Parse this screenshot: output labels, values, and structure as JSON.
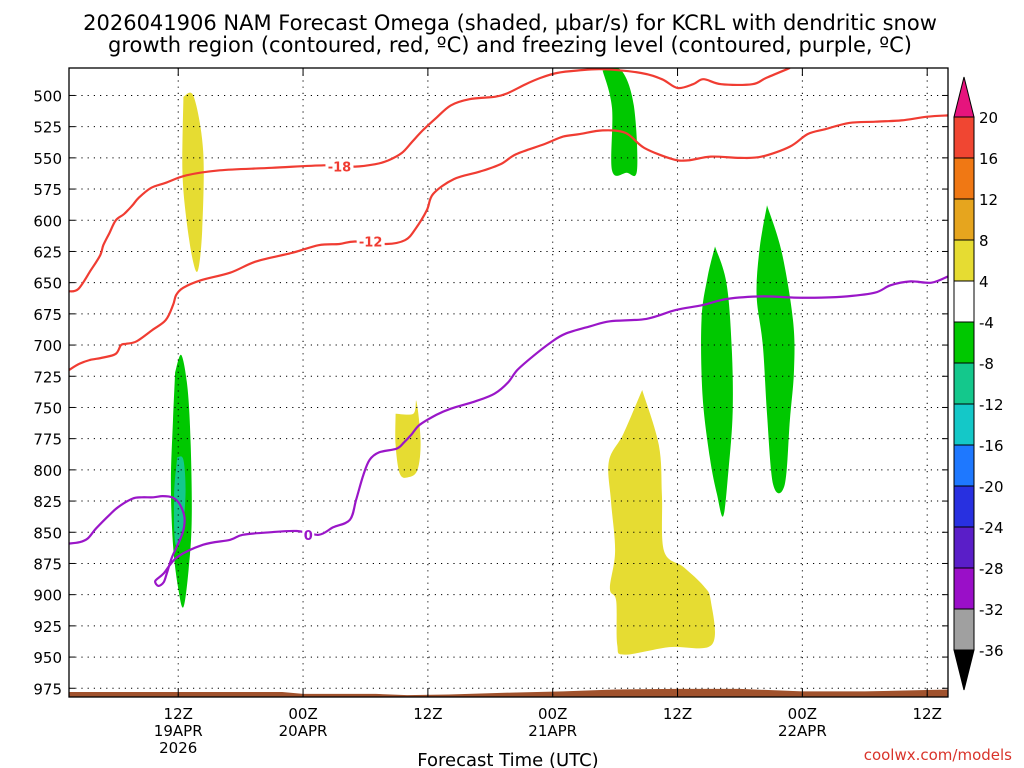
{
  "chart_data": {
    "type": "time-height",
    "title_line1": "2026041906 NAM Forecast Omega (shaded, µbar/s) for KCRL with dendritic snow",
    "title_line2": "growth region (contoured, red, ºC) and freezing level (contoured, purple, ºC)",
    "xlabel": "Forecast Time (UTC)",
    "credit": "coolwx.com/models",
    "xlim_hours": [
      -4.5,
      80
    ],
    "ylim_hpa": [
      478,
      982
    ],
    "y_ticks": [
      {
        "p": 500,
        "label": "500"
      },
      {
        "p": 525,
        "label": "525"
      },
      {
        "p": 550,
        "label": "550"
      },
      {
        "p": 575,
        "label": "575"
      },
      {
        "p": 600,
        "label": "600"
      },
      {
        "p": 625,
        "label": "625"
      },
      {
        "p": 650,
        "label": "650"
      },
      {
        "p": 675,
        "label": "675"
      },
      {
        "p": 700,
        "label": "700"
      },
      {
        "p": 725,
        "label": "725"
      },
      {
        "p": 750,
        "label": "750"
      },
      {
        "p": 775,
        "label": "775"
      },
      {
        "p": 800,
        "label": "800"
      },
      {
        "p": 825,
        "label": "825"
      },
      {
        "p": 850,
        "label": "850"
      },
      {
        "p": 875,
        "label": "875"
      },
      {
        "p": 900,
        "label": "900"
      },
      {
        "p": 925,
        "label": "925"
      },
      {
        "p": 950,
        "label": "950"
      },
      {
        "p": 975,
        "label": "975"
      }
    ],
    "x_ticks": [
      {
        "h": 6,
        "lines": [
          "12Z",
          "19APR",
          "2026"
        ]
      },
      {
        "h": 18,
        "lines": [
          "00Z",
          "20APR"
        ]
      },
      {
        "h": 30,
        "lines": [
          "12Z"
        ]
      },
      {
        "h": 42,
        "lines": [
          "00Z",
          "21APR"
        ]
      },
      {
        "h": 54,
        "lines": [
          "12Z"
        ]
      },
      {
        "h": 66,
        "lines": [
          "00Z",
          "22APR"
        ]
      },
      {
        "h": 78,
        "lines": [
          "12Z"
        ]
      }
    ],
    "colorbar": {
      "boundaries": [
        -36,
        -32,
        -28,
        -24,
        -20,
        -16,
        -12,
        -8,
        -4,
        4,
        8,
        12,
        16,
        20
      ],
      "colors": [
        "#a0a0a0",
        "#9a0fc8",
        "#5a1ec8",
        "#2830e0",
        "#1e78ff",
        "#14c8c8",
        "#14c88c",
        "#00c800",
        "#ffffff",
        "#e6dc32",
        "#e6a51e",
        "#f07814",
        "#f04632"
      ],
      "under_color": "#000000",
      "over_color": "#e6147d",
      "labels": [
        {
          "v": 20,
          "label": "20"
        },
        {
          "v": 16,
          "label": "16"
        },
        {
          "v": 12,
          "label": "12"
        },
        {
          "v": 8,
          "label": "8"
        },
        {
          "v": 4,
          "label": "4"
        },
        {
          "v": -4,
          "label": "-4"
        },
        {
          "v": -8,
          "label": "-8"
        },
        {
          "v": -12,
          "label": "-12"
        },
        {
          "v": -16,
          "label": "-16"
        },
        {
          "v": -20,
          "label": "-20"
        },
        {
          "v": -24,
          "label": "-24"
        },
        {
          "v": -28,
          "label": "-28"
        },
        {
          "v": -32,
          "label": "-32"
        },
        {
          "v": -36,
          "label": "-36"
        }
      ]
    },
    "terrain": {
      "color": "#a0522d",
      "points": [
        [
          -4.5,
          978
        ],
        [
          2,
          978
        ],
        [
          8,
          978
        ],
        [
          16,
          978
        ],
        [
          18,
          979.5
        ],
        [
          25,
          979.5
        ],
        [
          28,
          980.5
        ],
        [
          32,
          980
        ],
        [
          38,
          978.5
        ],
        [
          43,
          977.5
        ],
        [
          48,
          976
        ],
        [
          54,
          975.5
        ],
        [
          60,
          975.5
        ],
        [
          66,
          977.5
        ],
        [
          72,
          977.5
        ],
        [
          80,
          976
        ]
      ]
    },
    "contours": [
      {
        "name": "minus-18",
        "value": -18,
        "label": "-18",
        "label_at": [
          21.5,
          557
        ],
        "color": "#f03c32",
        "points": [
          [
            -4.5,
            657
          ],
          [
            -3.6,
            655
          ],
          [
            -2.4,
            640
          ],
          [
            -1.5,
            628
          ],
          [
            -1.2,
            620
          ],
          [
            -0.6,
            610
          ],
          [
            0,
            600
          ],
          [
            0.8,
            595
          ],
          [
            1.6,
            588
          ],
          [
            2.2,
            582
          ],
          [
            3.4,
            574
          ],
          [
            4.8,
            570
          ],
          [
            6.8,
            564
          ],
          [
            10,
            560
          ],
          [
            15,
            558
          ],
          [
            20,
            556
          ],
          [
            23,
            557
          ],
          [
            25,
            555
          ],
          [
            26.2,
            552
          ],
          [
            27.5,
            546
          ],
          [
            28.5,
            537
          ],
          [
            29.5,
            528
          ],
          [
            30.8,
            518
          ],
          [
            32.2,
            508
          ],
          [
            34,
            503
          ],
          [
            36.5,
            501
          ],
          [
            37.7,
            498
          ],
          [
            39.4,
            491
          ],
          [
            40.8,
            486
          ],
          [
            42.4,
            482
          ],
          [
            44.4,
            480
          ],
          [
            46.8,
            479
          ],
          [
            50.5,
            482
          ],
          [
            52.5,
            487
          ],
          [
            54,
            494
          ],
          [
            55.5,
            491
          ],
          [
            56.5,
            487
          ],
          [
            58.2,
            491
          ],
          [
            61.2,
            491
          ],
          [
            62.5,
            486
          ],
          [
            64.8,
            478
          ]
        ]
      },
      {
        "name": "minus-12",
        "value": -12,
        "label": "-12",
        "label_at": [
          24.5,
          617
        ],
        "color": "#f03c32",
        "points": [
          [
            -4.5,
            720
          ],
          [
            -3.5,
            715
          ],
          [
            -2.5,
            712
          ],
          [
            -1.2,
            710
          ],
          [
            0,
            707
          ],
          [
            0.5,
            700
          ],
          [
            1,
            699
          ],
          [
            2,
            697
          ],
          [
            3.5,
            688
          ],
          [
            4.8,
            680
          ],
          [
            5.5,
            668
          ],
          [
            5.8,
            660
          ],
          [
            6.5,
            654
          ],
          [
            8.2,
            648
          ],
          [
            11,
            642
          ],
          [
            13.5,
            633
          ],
          [
            17,
            626
          ],
          [
            19.5,
            620
          ],
          [
            21.5,
            619
          ],
          [
            23,
            617
          ],
          [
            26,
            619
          ],
          [
            27.8,
            616
          ],
          [
            28.8,
            607
          ],
          [
            29.9,
            592
          ],
          [
            30.5,
            579
          ],
          [
            32.5,
            567
          ],
          [
            35,
            561
          ],
          [
            37,
            555
          ],
          [
            38.5,
            547
          ],
          [
            41.2,
            539
          ],
          [
            43,
            533
          ],
          [
            44.6,
            531
          ],
          [
            46.8,
            528
          ],
          [
            49,
            530
          ],
          [
            50.8,
            542
          ],
          [
            53.5,
            551
          ],
          [
            55,
            552
          ],
          [
            57.2,
            549
          ],
          [
            60,
            550
          ],
          [
            62.1,
            549
          ],
          [
            64.8,
            541
          ],
          [
            66.5,
            531
          ],
          [
            68.2,
            527
          ],
          [
            70.5,
            522
          ],
          [
            73,
            521
          ],
          [
            75.5,
            520
          ],
          [
            78,
            517
          ],
          [
            80,
            516
          ]
        ]
      },
      {
        "name": "zero",
        "value": 0,
        "label": "0",
        "label_at": [
          18.5,
          852
        ],
        "color": "#9a16c8",
        "points": [
          [
            -4.5,
            859
          ],
          [
            -3.5,
            858
          ],
          [
            -2.7,
            855
          ],
          [
            -1.9,
            847
          ],
          [
            -0.6,
            836
          ],
          [
            0.2,
            830
          ],
          [
            1.6,
            823
          ],
          [
            2.5,
            822
          ],
          [
            3.6,
            822
          ],
          [
            4.5,
            821
          ],
          [
            5.4,
            822
          ],
          [
            6.1,
            827
          ],
          [
            6.6,
            838
          ],
          [
            6.4,
            851
          ],
          [
            5.4,
            870
          ],
          [
            4.9,
            883
          ],
          [
            4.6,
            890
          ],
          [
            4.1,
            893
          ],
          [
            3.8,
            889
          ],
          [
            4.6,
            883
          ],
          [
            5.9,
            870
          ],
          [
            8.4,
            860
          ],
          [
            11,
            856
          ],
          [
            12.2,
            852
          ],
          [
            14.8,
            850
          ],
          [
            17.4,
            849
          ],
          [
            19.5,
            852
          ],
          [
            20.9,
            846
          ],
          [
            22.5,
            840
          ],
          [
            23.1,
            824
          ],
          [
            23.8,
            804
          ],
          [
            24.4,
            792
          ],
          [
            25.3,
            786
          ],
          [
            27,
            783
          ],
          [
            27.7,
            778
          ],
          [
            28.4,
            772
          ],
          [
            29.2,
            764
          ],
          [
            30.8,
            756
          ],
          [
            32.2,
            751
          ],
          [
            34.6,
            745
          ],
          [
            36.4,
            739
          ],
          [
            37.7,
            730
          ],
          [
            38.6,
            720
          ],
          [
            40.1,
            709
          ],
          [
            41.8,
            698
          ],
          [
            43.2,
            691
          ],
          [
            45.6,
            685
          ],
          [
            47.5,
            681
          ],
          [
            51,
            679
          ],
          [
            53.8,
            672
          ],
          [
            56.4,
            668
          ],
          [
            58.8,
            663
          ],
          [
            62.2,
            661
          ],
          [
            65.2,
            662
          ],
          [
            67.8,
            662
          ],
          [
            70.3,
            661
          ],
          [
            73,
            658
          ],
          [
            74.5,
            652
          ],
          [
            76.4,
            649
          ],
          [
            78.4,
            650
          ],
          [
            80,
            645
          ]
        ]
      }
    ],
    "omega_shades": [
      {
        "name": "rise-19apr-low",
        "color": "#00c800",
        "points": [
          [
            5.7,
            722
          ],
          [
            6.3,
            708
          ],
          [
            6.9,
            735
          ],
          [
            7.2,
            780
          ],
          [
            7.3,
            840
          ],
          [
            7.0,
            880
          ],
          [
            6.5,
            910
          ],
          [
            6.0,
            895
          ],
          [
            5.5,
            860
          ],
          [
            5.3,
            810
          ],
          [
            5.5,
            760
          ]
        ]
      },
      {
        "name": "rise-19apr-core",
        "color": "#14c88c",
        "points": [
          [
            5.9,
            790
          ],
          [
            6.5,
            792
          ],
          [
            6.7,
            820
          ],
          [
            6.3,
            855
          ],
          [
            5.7,
            858
          ],
          [
            5.6,
            820
          ]
        ]
      },
      {
        "name": "sink-19apr-upper",
        "color": "#e6dc32",
        "points": [
          [
            6.5,
            501
          ],
          [
            7.5,
            501
          ],
          [
            8.4,
            545
          ],
          [
            8.3,
            608
          ],
          [
            7.9,
            640
          ],
          [
            7.4,
            632
          ],
          [
            6.8,
            600
          ],
          [
            6.4,
            560
          ]
        ]
      },
      {
        "name": "sink-20apr-mid",
        "color": "#e6dc32",
        "points": [
          [
            26.9,
            755
          ],
          [
            28.6,
            755
          ],
          [
            28.9,
            745
          ],
          [
            29.3,
            777
          ],
          [
            29,
            800
          ],
          [
            28.1,
            806
          ],
          [
            27.3,
            803
          ],
          [
            26.9,
            780
          ]
        ]
      },
      {
        "name": "rise-21apr-upper",
        "color": "#00c800",
        "points": [
          [
            46.8,
            480
          ],
          [
            48.6,
            480
          ],
          [
            49.8,
            508
          ],
          [
            50.1,
            560
          ],
          [
            49.1,
            562
          ],
          [
            47.7,
            560
          ],
          [
            47.7,
            510
          ]
        ]
      },
      {
        "name": "sink-21apr-low",
        "color": "#e6dc32",
        "points": [
          [
            50.6,
            736
          ],
          [
            52.2,
            780
          ],
          [
            52.5,
            820
          ],
          [
            52.7,
            865
          ],
          [
            54.6,
            878
          ],
          [
            56.5,
            893
          ],
          [
            57.2,
            905
          ],
          [
            57.3,
            940
          ],
          [
            53.2,
            942
          ],
          [
            48.9,
            948
          ],
          [
            48.2,
            940
          ],
          [
            48.1,
            905
          ],
          [
            47.5,
            895
          ],
          [
            48.0,
            865
          ],
          [
            47.6,
            825
          ],
          [
            47.4,
            793
          ],
          [
            48.8,
            771
          ]
        ]
      },
      {
        "name": "rise-21apr-a",
        "color": "#00c800",
        "points": [
          [
            57.6,
            621
          ],
          [
            58.7,
            650
          ],
          [
            59.2,
            700
          ],
          [
            59.3,
            753
          ],
          [
            58.9,
            800
          ],
          [
            58.4,
            837
          ],
          [
            57.8,
            820
          ],
          [
            57.1,
            790
          ],
          [
            56.4,
            740
          ],
          [
            56.3,
            680
          ],
          [
            56.9,
            645
          ]
        ]
      },
      {
        "name": "rise-21apr-b",
        "color": "#00c800",
        "points": [
          [
            62.6,
            588
          ],
          [
            64.0,
            625
          ],
          [
            65.1,
            680
          ],
          [
            65.2,
            720
          ],
          [
            64.8,
            760
          ],
          [
            64.3,
            812
          ],
          [
            63.2,
            812
          ],
          [
            62.6,
            755
          ],
          [
            62.2,
            700
          ],
          [
            61.6,
            660
          ],
          [
            61.9,
            622
          ]
        ]
      }
    ]
  }
}
